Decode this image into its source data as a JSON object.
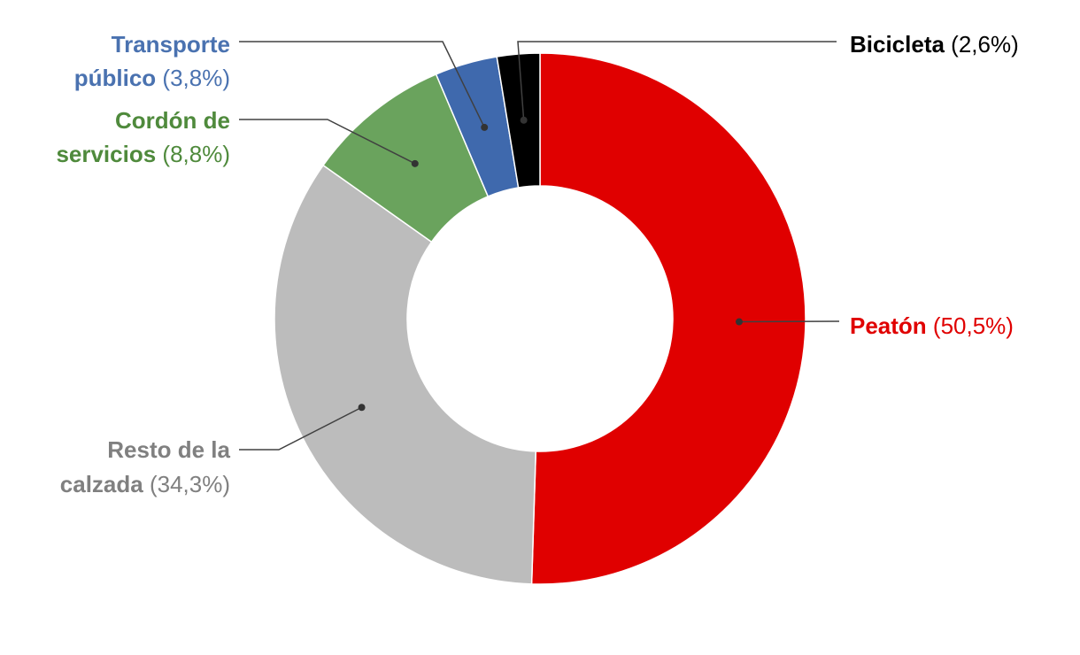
{
  "chart_data": {
    "type": "pie",
    "variant": "donut",
    "title": "",
    "slices": [
      {
        "name": "Peatón",
        "value": 50.5,
        "pct_label": "(50,5%)",
        "color": "#e00000",
        "label_lines": [
          "Peatón"
        ]
      },
      {
        "name": "Resto de la calzada",
        "value": 34.3,
        "pct_label": "(34,3%)",
        "color": "#bcbcbc",
        "label_color": "#808080",
        "label_lines": [
          "Resto de la",
          "calzada"
        ]
      },
      {
        "name": "Cordón de servicios",
        "value": 8.8,
        "pct_label": "(8,8%)",
        "color": "#6aa35d",
        "label_color": "#4f8a3c",
        "label_lines": [
          "Cordón de",
          "servicios"
        ]
      },
      {
        "name": "Transporte público",
        "value": 3.8,
        "pct_label": "(3,8%)",
        "color": "#3f69ad",
        "label_color": "#4a72b0",
        "label_lines": [
          "Transporte",
          "público"
        ]
      },
      {
        "name": "Bicicleta",
        "value": 2.6,
        "pct_label": "(2,6%)",
        "color": "#000000",
        "label_color": "#000000",
        "label_lines": [
          "Bicicleta"
        ]
      }
    ],
    "legend": "none",
    "start_angle": "12 o'clock",
    "direction": "clockwise"
  }
}
